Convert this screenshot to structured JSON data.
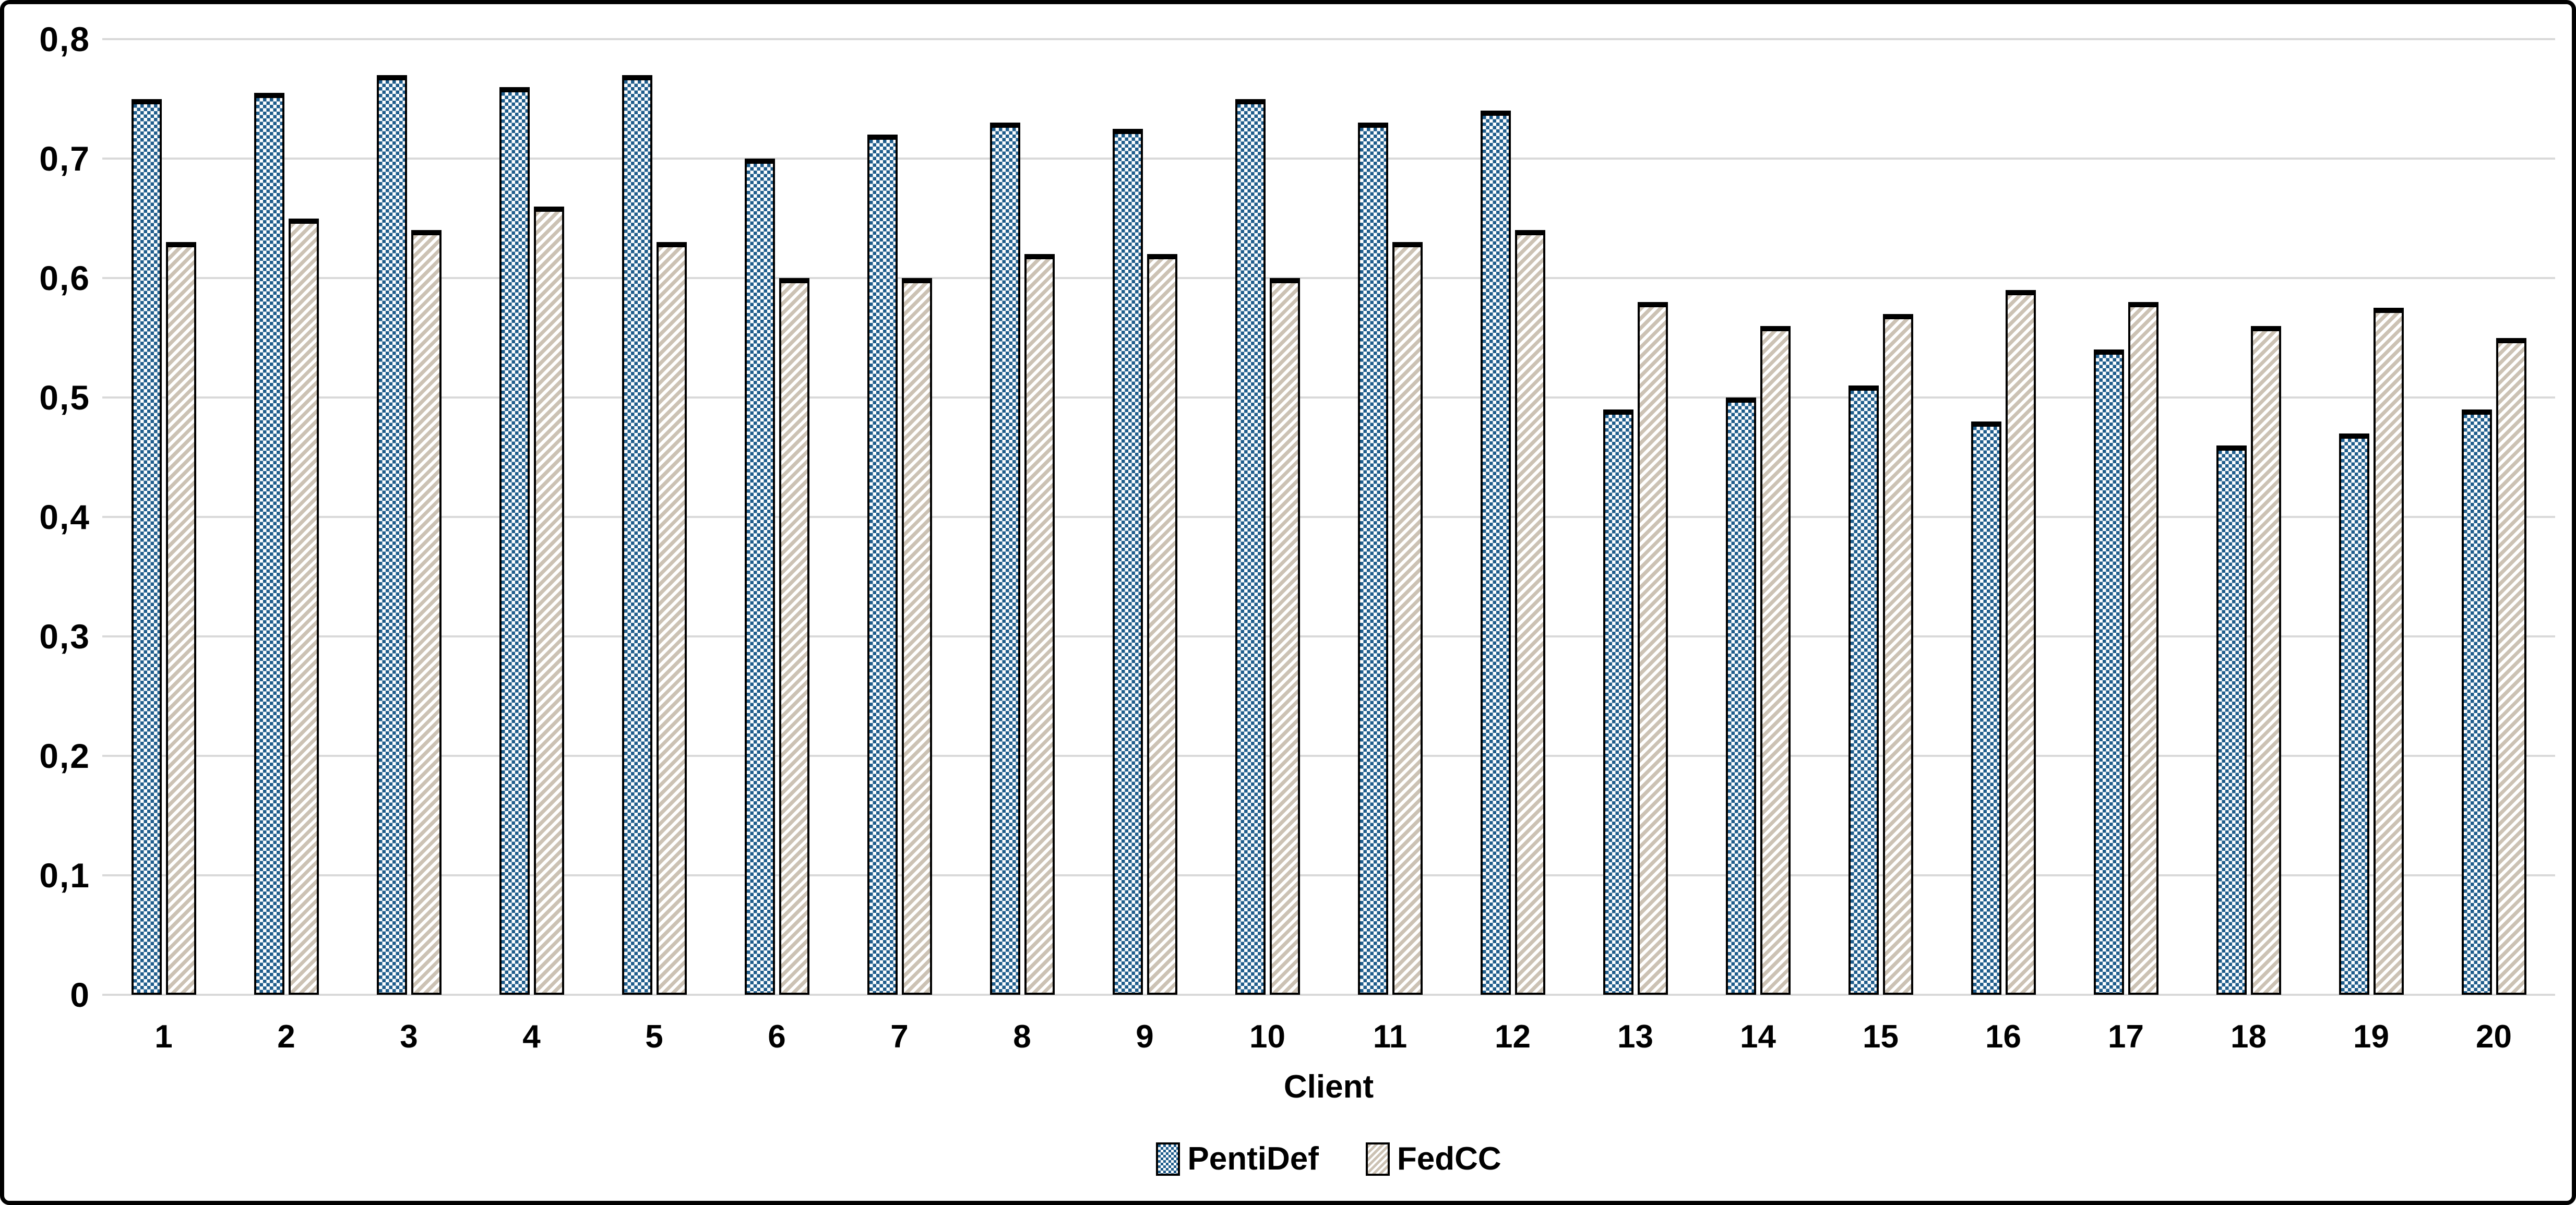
{
  "chart_data": {
    "type": "bar",
    "title": "",
    "xlabel": "Client",
    "ylabel": "",
    "ylim": [
      0,
      0.8
    ],
    "grid": "horizontal",
    "legend_position": "bottom",
    "decimal_separator": ",",
    "y_ticks": [
      "0,8",
      "0,7",
      "0,6",
      "0,5",
      "0,4",
      "0,3",
      "0,2",
      "0,1",
      "0"
    ],
    "categories": [
      "1",
      "2",
      "3",
      "4",
      "5",
      "6",
      "7",
      "8",
      "9",
      "10",
      "11",
      "12",
      "13",
      "14",
      "15",
      "16",
      "17",
      "18",
      "19",
      "20"
    ],
    "series": [
      {
        "name": "PentiDef",
        "pattern": "small-checkerboard",
        "color": "#1E5C8B",
        "values": [
          0.75,
          0.755,
          0.77,
          0.76,
          0.77,
          0.7,
          0.72,
          0.73,
          0.725,
          0.75,
          0.73,
          0.74,
          0.49,
          0.5,
          0.51,
          0.48,
          0.54,
          0.46,
          0.47,
          0.49
        ]
      },
      {
        "name": "FedCC",
        "pattern": "light-diagonal-stripes",
        "color": "#CCC2B4",
        "values": [
          0.63,
          0.65,
          0.64,
          0.66,
          0.63,
          0.6,
          0.6,
          0.62,
          0.62,
          0.6,
          0.63,
          0.64,
          0.58,
          0.56,
          0.57,
          0.59,
          0.58,
          0.56,
          0.575,
          0.55
        ]
      }
    ],
    "colors": {
      "background": "#FFFFFF",
      "frame_border": "#000000",
      "gridline": "#D9D9D9",
      "bar_outline": "#000000",
      "text": "#000000"
    }
  }
}
